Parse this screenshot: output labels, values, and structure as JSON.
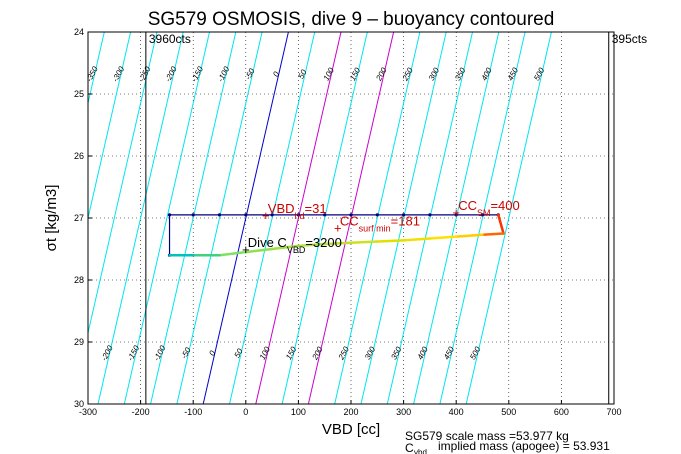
{
  "chart_data": {
    "type": "line",
    "title": "SG579 OSMOSIS, dive 9 – buoyancy contoured",
    "xlabel": "VBD [cc]",
    "ylabel": "σt [kg/m3]",
    "xlim": [
      -300,
      700
    ],
    "ylim": [
      24,
      30
    ],
    "y_reversed": true,
    "x_ticks": [
      -300,
      -200,
      -100,
      0,
      100,
      200,
      300,
      400,
      500,
      600,
      700
    ],
    "y_ticks": [
      24,
      25,
      26,
      27,
      28,
      29,
      30
    ],
    "limit_lines": [
      {
        "x": -190,
        "label": "3960cts"
      },
      {
        "x": 690,
        "label": "395cts"
      }
    ],
    "isolines": {
      "values": [
        -450,
        -400,
        -350,
        -300,
        -250,
        -200,
        -150,
        -100,
        -50,
        0,
        50,
        100,
        150,
        200,
        250,
        300,
        350,
        400,
        450,
        500
      ],
      "color": "#00e5ee",
      "zero_color": "#0000cc",
      "highlight_values": [
        100,
        200
      ],
      "highlight_color": "#cc00cc",
      "slope_cc_per_sigma": 27
    },
    "series": [
      {
        "name": "dive",
        "x": [
          -145,
          -145,
          -100,
          -50,
          0,
          50,
          100,
          150,
          200,
          250,
          300,
          350,
          400,
          450,
          480
        ],
        "y": [
          27.6,
          26.95,
          26.95,
          26.95,
          26.95,
          26.95,
          26.95,
          26.95,
          26.95,
          26.95,
          26.95,
          26.95,
          26.95,
          26.95,
          26.95
        ],
        "color": "#000080"
      },
      {
        "name": "climb",
        "x": [
          480,
          490,
          450,
          400,
          350,
          300,
          250,
          200,
          150,
          100,
          50,
          0,
          -50,
          -100,
          -145
        ],
        "y": [
          26.95,
          27.25,
          27.27,
          27.3,
          27.33,
          27.36,
          27.38,
          27.4,
          27.42,
          27.45,
          27.5,
          27.55,
          27.6,
          27.6,
          27.6
        ],
        "colors": [
          "#ff3300",
          "#ff6600",
          "#ffcc00",
          "#ffe000",
          "#f0e000",
          "#e0e000",
          "#d0e020",
          "#c0e030",
          "#b0e040",
          "#a0e040",
          "#90e050",
          "#80e060",
          "#40d080",
          "#00c0c0",
          "#0080ff"
        ]
      }
    ],
    "annotations": [
      {
        "text": "VBD",
        "sub": "hd",
        "tail": "=31",
        "x": 38,
        "y": 26.95,
        "color": "#cc0000"
      },
      {
        "text": "CC",
        "sub": "surf min",
        "tail": "=181",
        "x": 175,
        "y": 27.15,
        "color": "#cc0000"
      },
      {
        "text": "CC",
        "sub": "SM",
        "tail": "=400",
        "x": 400,
        "y": 26.9,
        "color": "#cc0000"
      },
      {
        "text": "Dive C",
        "sub": "VBD",
        "tail": "=3200",
        "x": 0,
        "y": 27.5,
        "color": "#000000"
      }
    ],
    "footer": [
      "SG579 scale mass =53.977 kg",
      "C",
      "vbd",
      "implied mass (apogee) = 53.931"
    ]
  }
}
